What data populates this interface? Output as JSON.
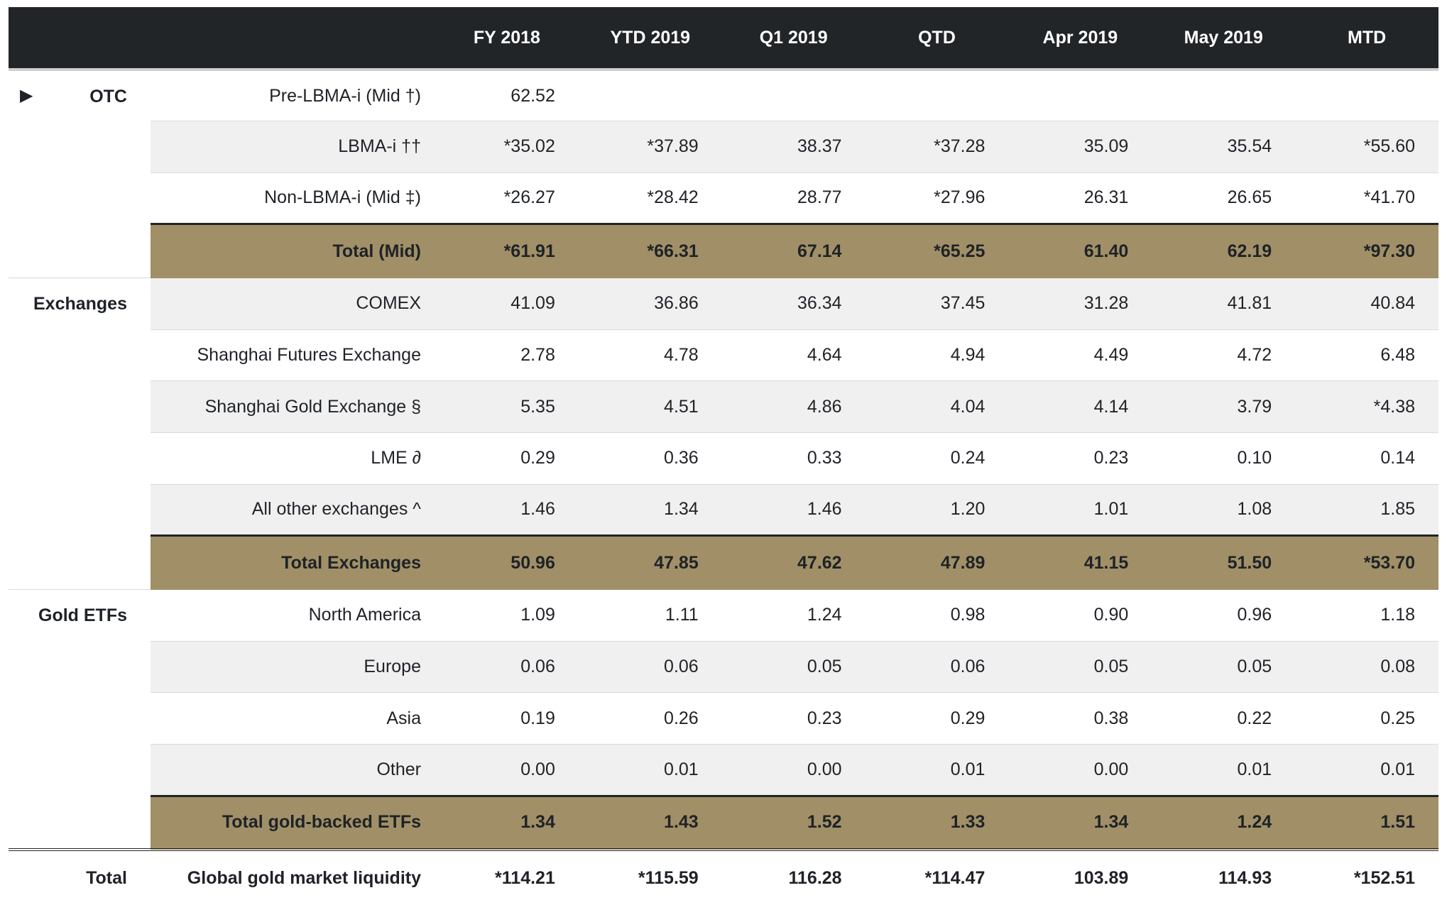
{
  "columns": [
    "FY 2018",
    "YTD 2019",
    "Q1 2019",
    "QTD",
    "Apr 2019",
    "May 2019",
    "MTD"
  ],
  "expand_icon": "▶",
  "groups": {
    "otc": {
      "title": "OTC",
      "rows": [
        {
          "label": "Pre-LBMA-i (Mid †)",
          "values": [
            "62.52",
            "",
            "",
            "",
            "",
            "",
            ""
          ]
        },
        {
          "label": "LBMA-i ††",
          "values": [
            "*35.02",
            "*37.89",
            "38.37",
            "*37.28",
            "35.09",
            "35.54",
            "*55.60"
          ]
        },
        {
          "label": "Non-LBMA-i (Mid ‡)",
          "values": [
            "*26.27",
            "*28.42",
            "28.77",
            "*27.96",
            "26.31",
            "26.65",
            "*41.70"
          ]
        }
      ],
      "total": {
        "label": "Total (Mid)",
        "values": [
          "*61.91",
          "*66.31",
          "67.14",
          "*65.25",
          "61.40",
          "62.19",
          "*97.30"
        ]
      }
    },
    "exchanges": {
      "title": "Exchanges",
      "rows": [
        {
          "label": "COMEX",
          "values": [
            "41.09",
            "36.86",
            "36.34",
            "37.45",
            "31.28",
            "41.81",
            "40.84"
          ]
        },
        {
          "label": "Shanghai Futures Exchange",
          "values": [
            "2.78",
            "4.78",
            "4.64",
            "4.94",
            "4.49",
            "4.72",
            "6.48"
          ]
        },
        {
          "label": "Shanghai Gold Exchange §",
          "values": [
            "5.35",
            "4.51",
            "4.86",
            "4.04",
            "4.14",
            "3.79",
            "*4.38"
          ]
        },
        {
          "label": "LME ∂",
          "values": [
            "0.29",
            "0.36",
            "0.33",
            "0.24",
            "0.23",
            "0.10",
            "0.14"
          ]
        },
        {
          "label": "All other exchanges ^",
          "values": [
            "1.46",
            "1.34",
            "1.46",
            "1.20",
            "1.01",
            "1.08",
            "1.85"
          ]
        }
      ],
      "total": {
        "label": "Total Exchanges",
        "values": [
          "50.96",
          "47.85",
          "47.62",
          "47.89",
          "41.15",
          "51.50",
          "*53.70"
        ]
      }
    },
    "etfs": {
      "title": "Gold ETFs",
      "rows": [
        {
          "label": "North America",
          "values": [
            "1.09",
            "1.11",
            "1.24",
            "0.98",
            "0.90",
            "0.96",
            "1.18"
          ]
        },
        {
          "label": "Europe",
          "values": [
            "0.06",
            "0.06",
            "0.05",
            "0.06",
            "0.05",
            "0.05",
            "0.08"
          ]
        },
        {
          "label": "Asia",
          "values": [
            "0.19",
            "0.26",
            "0.23",
            "0.29",
            "0.38",
            "0.22",
            "0.25"
          ]
        },
        {
          "label": "Other",
          "values": [
            "0.00",
            "0.01",
            "0.00",
            "0.01",
            "0.00",
            "0.01",
            "0.01"
          ]
        }
      ],
      "total": {
        "label": "Total gold-backed ETFs",
        "values": [
          "1.34",
          "1.43",
          "1.52",
          "1.33",
          "1.34",
          "1.24",
          "1.51"
        ]
      }
    }
  },
  "grand_total": {
    "section": "Total",
    "label": "Global gold market liquidity",
    "values": [
      "*114.21",
      "*115.59",
      "116.28",
      "*114.47",
      "103.89",
      "114.93",
      "*152.51"
    ]
  },
  "colors": {
    "header_bg": "#222528",
    "total_row_bg": "#a19067",
    "stripe_bg": "#f0f0f0"
  }
}
